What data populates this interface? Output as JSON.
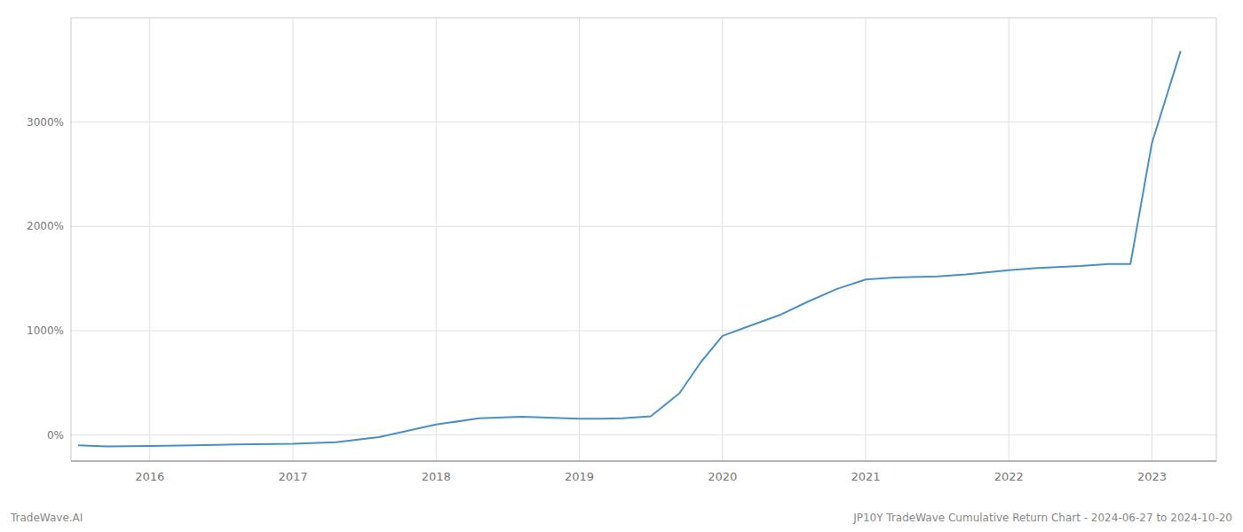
{
  "chart_data": {
    "type": "line",
    "title": "JP10Y TradeWave Cumulative Return Chart - 2024-06-27 to 2024-10-20",
    "annotations": [
      "TradeWave.AI"
    ],
    "color": "#4a90c4",
    "grid": true,
    "x": [
      2015.5,
      2015.7,
      2016.0,
      2016.3,
      2016.6,
      2017.0,
      2017.3,
      2017.6,
      2018.0,
      2018.3,
      2018.6,
      2019.0,
      2019.15,
      2019.3,
      2019.5,
      2019.7,
      2019.85,
      2020.0,
      2020.2,
      2020.4,
      2020.6,
      2020.8,
      2021.0,
      2021.2,
      2021.5,
      2021.7,
      2022.0,
      2022.2,
      2022.5,
      2022.7,
      2022.85,
      2023.0,
      2023.2
    ],
    "values": [
      -100,
      -110,
      -105,
      -100,
      -90,
      -85,
      -70,
      -20,
      100,
      160,
      175,
      155,
      155,
      160,
      180,
      400,
      700,
      950,
      1050,
      1150,
      1280,
      1400,
      1490,
      1510,
      1520,
      1540,
      1580,
      1600,
      1620,
      1640,
      1640,
      2800,
      3680
    ],
    "xlim": [
      2015.45,
      2023.45
    ],
    "xticks": [
      2016,
      2017,
      2018,
      2019,
      2020,
      2021,
      2022,
      2023
    ],
    "ylim": [
      -250,
      4000
    ],
    "yticks": [
      {
        "value": 0,
        "label": "0%"
      },
      {
        "value": 1000,
        "label": "1000%"
      },
      {
        "value": 2000,
        "label": "2000%"
      },
      {
        "value": 3000,
        "label": "3000%"
      }
    ]
  }
}
